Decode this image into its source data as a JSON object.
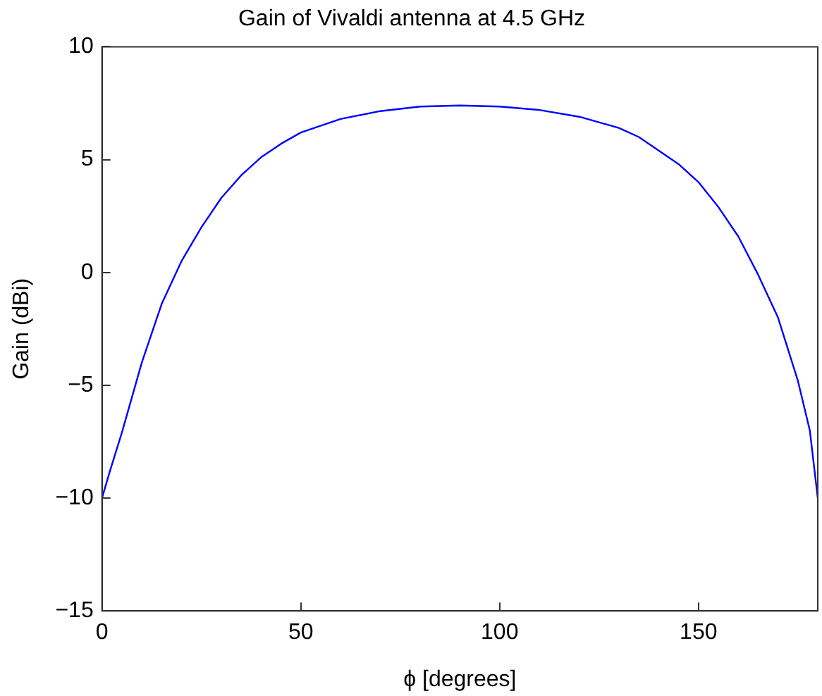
{
  "chart_data": {
    "type": "line",
    "title": "Gain of Vivaldi antenna at 4.5 GHz",
    "xlabel": "ϕ [degrees]",
    "ylabel": "Gain (dBi)",
    "x": [
      0,
      2,
      5,
      10,
      15,
      20,
      25,
      30,
      35,
      40,
      45,
      50,
      60,
      70,
      80,
      90,
      100,
      110,
      120,
      130,
      135,
      140,
      145,
      150,
      155,
      160,
      165,
      170,
      175,
      178,
      180
    ],
    "series": [
      {
        "color": "#0000ff",
        "values": [
          -10,
          -8.8,
          -7.1,
          -4,
          -1.4,
          0.5,
          2,
          3.3,
          4.3,
          5.1,
          5.7,
          6.2,
          6.8,
          7.15,
          7.35,
          7.4,
          7.35,
          7.2,
          6.9,
          6.4,
          6,
          5.4,
          4.8,
          4,
          2.9,
          1.6,
          -0.1,
          -2,
          -4.8,
          -7,
          -10
        ]
      }
    ],
    "xlim": [
      0,
      180
    ],
    "xticks": [
      0,
      50,
      100,
      150
    ],
    "ylim": [
      -15,
      10
    ],
    "yticks": [
      -15,
      -10,
      -5,
      0,
      5,
      10
    ],
    "grid": false,
    "legend": false,
    "marker": "none",
    "line_style": "solid"
  }
}
